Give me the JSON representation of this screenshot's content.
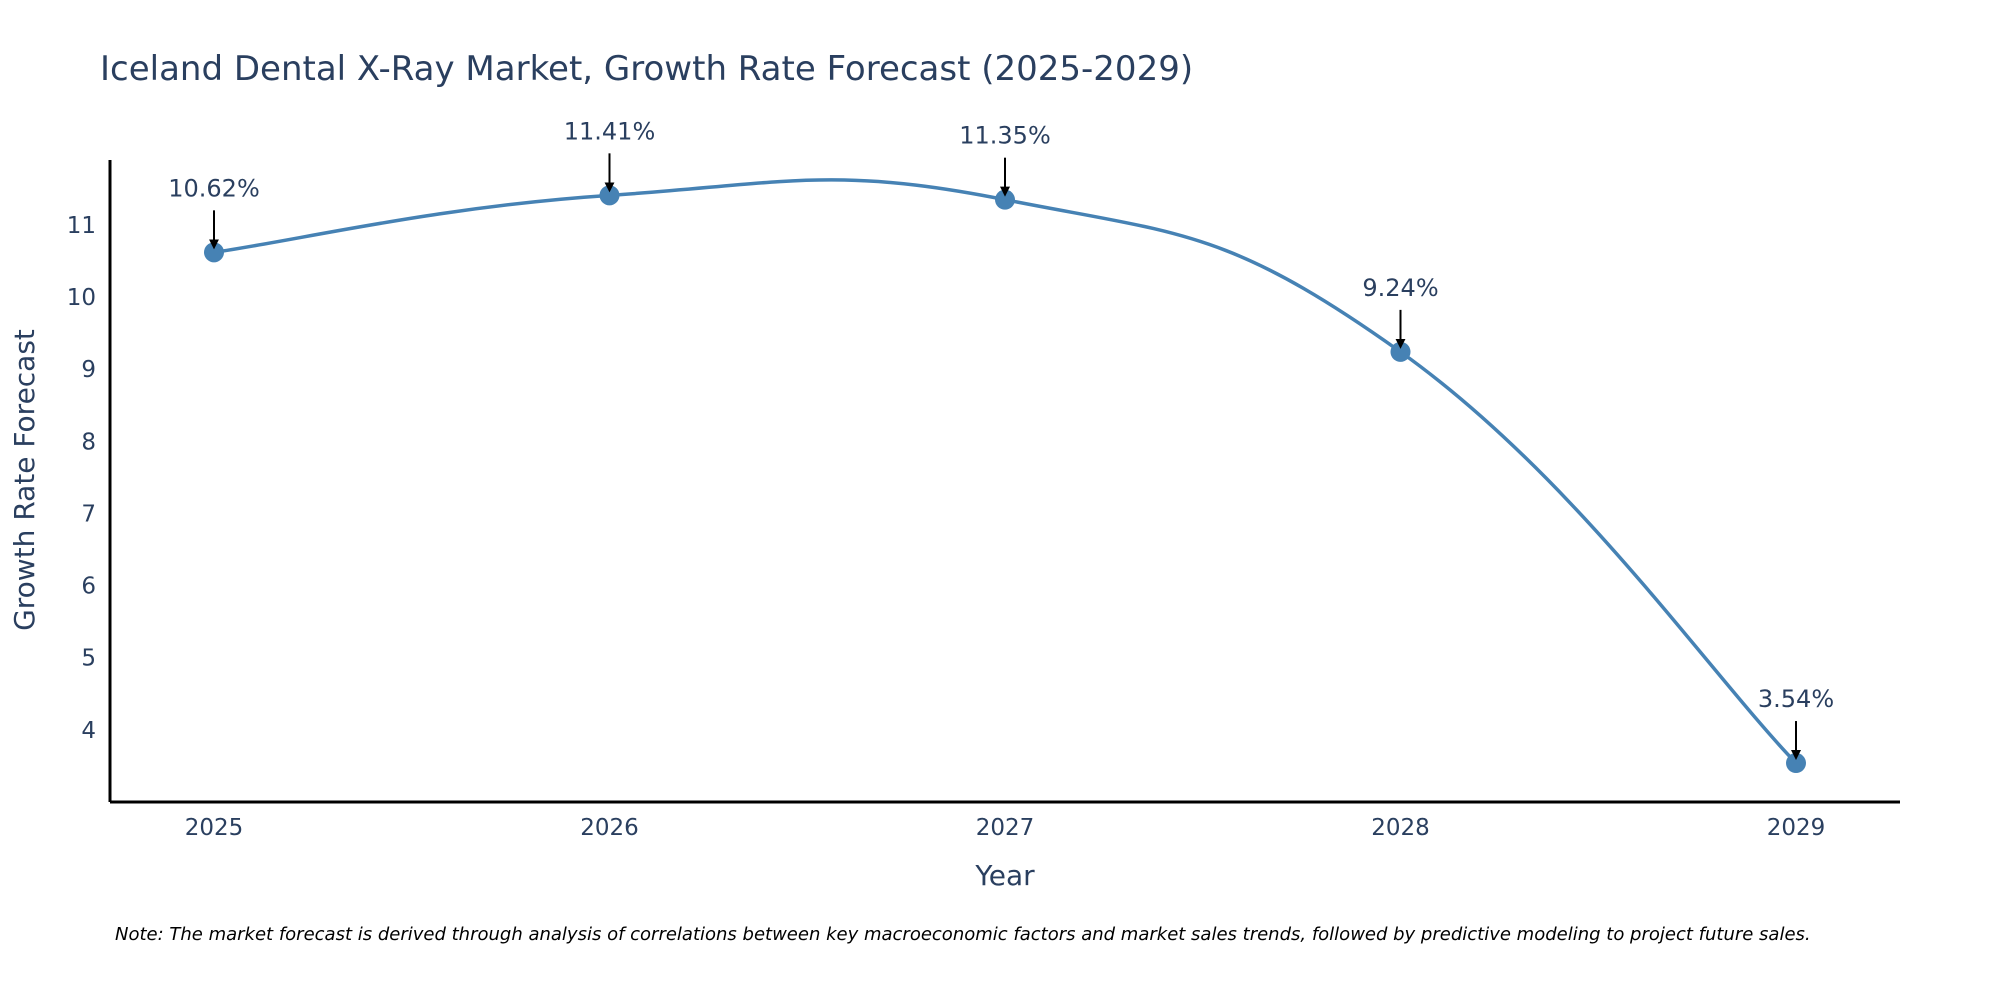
{
  "chart_data": {
    "type": "line",
    "title": "Iceland Dental X-Ray Market, Growth Rate Forecast (2025-2029)",
    "xlabel": "Year",
    "ylabel": "Growth Rate Forecast",
    "x": [
      "2025",
      "2026",
      "2027",
      "2028",
      "2029"
    ],
    "values": [
      10.62,
      11.41,
      11.35,
      9.24,
      3.54
    ],
    "data_labels": [
      "10.62%",
      "11.41%",
      "11.35%",
      "9.24%",
      "3.54%"
    ],
    "yticks": [
      4,
      5,
      6,
      7,
      8,
      9,
      10,
      11
    ],
    "ylim": [
      3.0,
      11.9
    ],
    "grid": false,
    "smoothing": "spline",
    "line_color": "#4682b4",
    "marker_color": "#4682b4",
    "arrow_color": "#000000",
    "axis_color": "#000000",
    "note": "Note: The market forecast is derived through analysis of correlations between key macroeconomic factors and market sales trends, followed by predictive modeling to project future sales."
  }
}
